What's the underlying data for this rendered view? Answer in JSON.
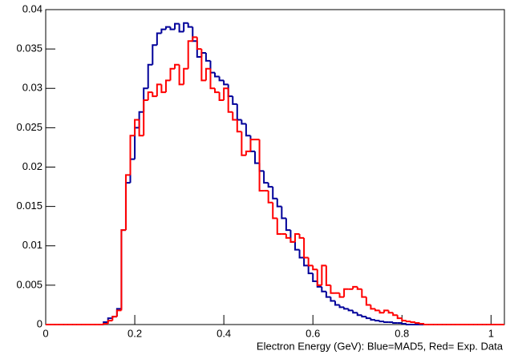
{
  "chart_data": {
    "type": "histogram",
    "x_label": "Electron Energy (GeV): Blue=MAD5, Red= Exp. Data",
    "bins": [
      0,
      0.01,
      0.02,
      0.03,
      0.04,
      0.05,
      0.06,
      0.07,
      0.08,
      0.09,
      0.1,
      0.11,
      0.12,
      0.13,
      0.14,
      0.15,
      0.16,
      0.17,
      0.18,
      0.19,
      0.2,
      0.21,
      0.22,
      0.23,
      0.24,
      0.25,
      0.26,
      0.27,
      0.28,
      0.29,
      0.3,
      0.31,
      0.32,
      0.33,
      0.34,
      0.35,
      0.36,
      0.37,
      0.38,
      0.39,
      0.4,
      0.41,
      0.42,
      0.43,
      0.44,
      0.45,
      0.46,
      0.47,
      0.48,
      0.49,
      0.5,
      0.51,
      0.52,
      0.53,
      0.54,
      0.55,
      0.56,
      0.57,
      0.58,
      0.59,
      0.6,
      0.61,
      0.62,
      0.63,
      0.64,
      0.65,
      0.66,
      0.67,
      0.68,
      0.69,
      0.7,
      0.71,
      0.72,
      0.73,
      0.74,
      0.75,
      0.76,
      0.77,
      0.78,
      0.79,
      0.8,
      0.81,
      0.82,
      0.83,
      0.84,
      0.85,
      0.86,
      0.87,
      0.88,
      0.89,
      0.9,
      0.91,
      0.92,
      0.93,
      0.94,
      0.95,
      0.96,
      0.97,
      0.98,
      0.99,
      1,
      1.01,
      1.02,
      1.03
    ],
    "series": [
      {
        "name": "MAD5",
        "color": "#000099",
        "values": [
          0,
          0,
          0,
          0,
          0,
          0,
          0,
          0,
          0,
          0,
          0,
          0,
          0,
          0.0003,
          0.0008,
          0.001,
          0.002,
          0.012,
          0.018,
          0.021,
          0.025,
          0.027,
          0.03,
          0.033,
          0.0355,
          0.037,
          0.0375,
          0.0378,
          0.0375,
          0.0382,
          0.0372,
          0.0383,
          0.0378,
          0.036,
          0.034,
          0.0345,
          0.0335,
          0.032,
          0.0315,
          0.031,
          0.0305,
          0.029,
          0.028,
          0.026,
          0.0255,
          0.024,
          0.022,
          0.0205,
          0.0195,
          0.018,
          0.0175,
          0.016,
          0.015,
          0.0135,
          0.012,
          0.0105,
          0.0095,
          0.0085,
          0.0075,
          0.0065,
          0.0055,
          0.0048,
          0.0042,
          0.0035,
          0.003,
          0.0025,
          0.0022,
          0.002,
          0.0018,
          0.0015,
          0.0012,
          0.001,
          0.0008,
          0.0006,
          0.0005,
          0.0004,
          0.0003,
          0.0003,
          0.0002,
          0.0002,
          0.0001,
          0,
          0,
          0,
          0,
          0,
          0,
          0,
          0,
          0,
          0,
          0,
          0,
          0,
          0,
          0,
          0,
          0,
          0,
          0,
          0,
          0,
          0
        ]
      },
      {
        "name": "Exp. Data",
        "color": "#ff0000",
        "values": [
          0,
          0,
          0,
          0,
          0,
          0,
          0,
          0,
          0,
          0,
          0,
          0,
          0,
          0.0001,
          0.0005,
          0.001,
          0.0018,
          0.012,
          0.019,
          0.024,
          0.026,
          0.024,
          0.0285,
          0.0295,
          0.029,
          0.0305,
          0.0295,
          0.031,
          0.0325,
          0.033,
          0.0305,
          0.0325,
          0.036,
          0.0365,
          0.035,
          0.031,
          0.0325,
          0.03,
          0.0295,
          0.0285,
          0.03,
          0.027,
          0.026,
          0.0245,
          0.0215,
          0.022,
          0.0235,
          0.0235,
          0.017,
          0.017,
          0.0155,
          0.0135,
          0.0115,
          0.0115,
          0.011,
          0.0105,
          0.0115,
          0.011,
          0.0085,
          0.0075,
          0.007,
          0.005,
          0.0075,
          0.005,
          0.004,
          0.004,
          0.0035,
          0.0045,
          0.0045,
          0.0048,
          0.0045,
          0.0035,
          0.0025,
          0.002,
          0.0018,
          0.0015,
          0.0018,
          0.0015,
          0.0012,
          0.0008,
          0.0005,
          0.0004,
          0.0003,
          0.0002,
          0.0001,
          0,
          0,
          0,
          0,
          0,
          0,
          0,
          0,
          0,
          0,
          0,
          0,
          0,
          0,
          0,
          0,
          0,
          0
        ]
      }
    ],
    "xlim": [
      0,
      1.03
    ],
    "ylim": [
      0,
      0.04
    ],
    "xticks": [
      0,
      0.2,
      0.4,
      0.6,
      0.8,
      1
    ],
    "yticks": [
      0,
      0.005,
      0.01,
      0.015,
      0.02,
      0.025,
      0.03,
      0.035,
      0.04
    ]
  }
}
